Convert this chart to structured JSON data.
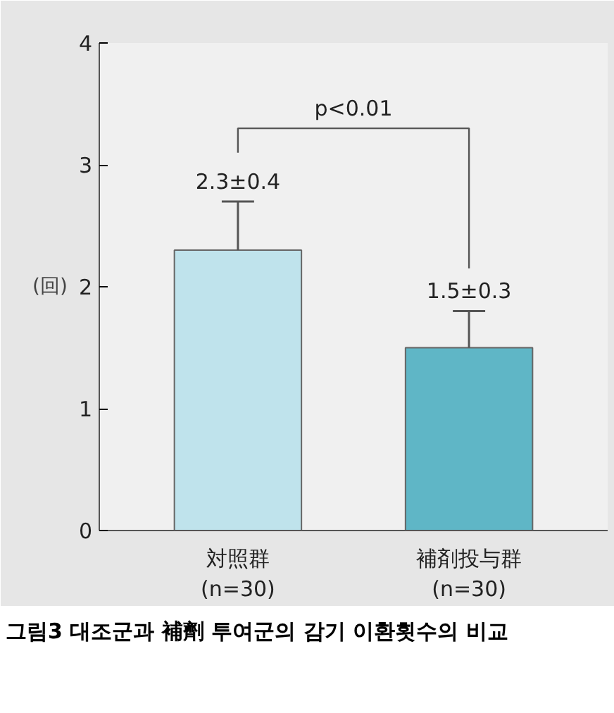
{
  "chart_data": {
    "type": "bar",
    "ylabel": "(回)",
    "categories": [
      "対照群\n(n=30)",
      "補剤投与群\n(n=30)"
    ],
    "values": [
      2.3,
      1.5
    ],
    "errors": [
      0.4,
      0.3
    ],
    "colors": [
      "#bfe3ec",
      "#5fb6c6"
    ],
    "value_labels": [
      "2.3±0.4",
      "1.5±0.3"
    ],
    "ylim": [
      0,
      4
    ],
    "yticks": [
      0,
      1,
      2,
      3,
      4
    ],
    "annotations": [
      "p<0.01",
      "그림3 대조군과 補劑 투여군의 감기 이환횟수의 비교"
    ]
  }
}
